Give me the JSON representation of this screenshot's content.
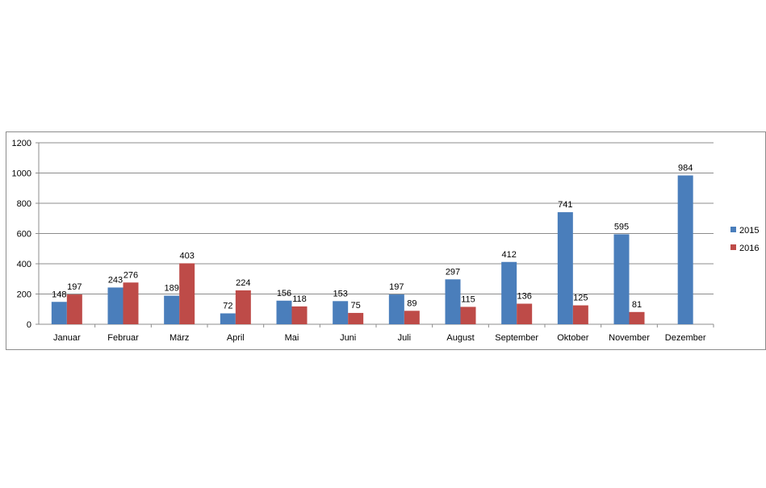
{
  "chart_data": {
    "type": "bar",
    "title": "",
    "xlabel": "",
    "ylabel": "",
    "ylim": [
      0,
      1200
    ],
    "yticks": [
      0,
      200,
      400,
      600,
      800,
      1000,
      1200
    ],
    "grid": true,
    "legend_position": "right",
    "categories": [
      "Januar",
      "Februar",
      "März",
      "April",
      "Mai",
      "Juni",
      "Juli",
      "August",
      "September",
      "Oktober",
      "November",
      "Dezember"
    ],
    "series": [
      {
        "name": "2015",
        "color": "#4a7ebb",
        "values": [
          148,
          243,
          189,
          72,
          156,
          153,
          197,
          297,
          412,
          741,
          595,
          984
        ]
      },
      {
        "name": "2016",
        "color": "#be4b48",
        "values": [
          197,
          276,
          403,
          224,
          118,
          75,
          89,
          115,
          136,
          125,
          81,
          null
        ]
      }
    ]
  }
}
